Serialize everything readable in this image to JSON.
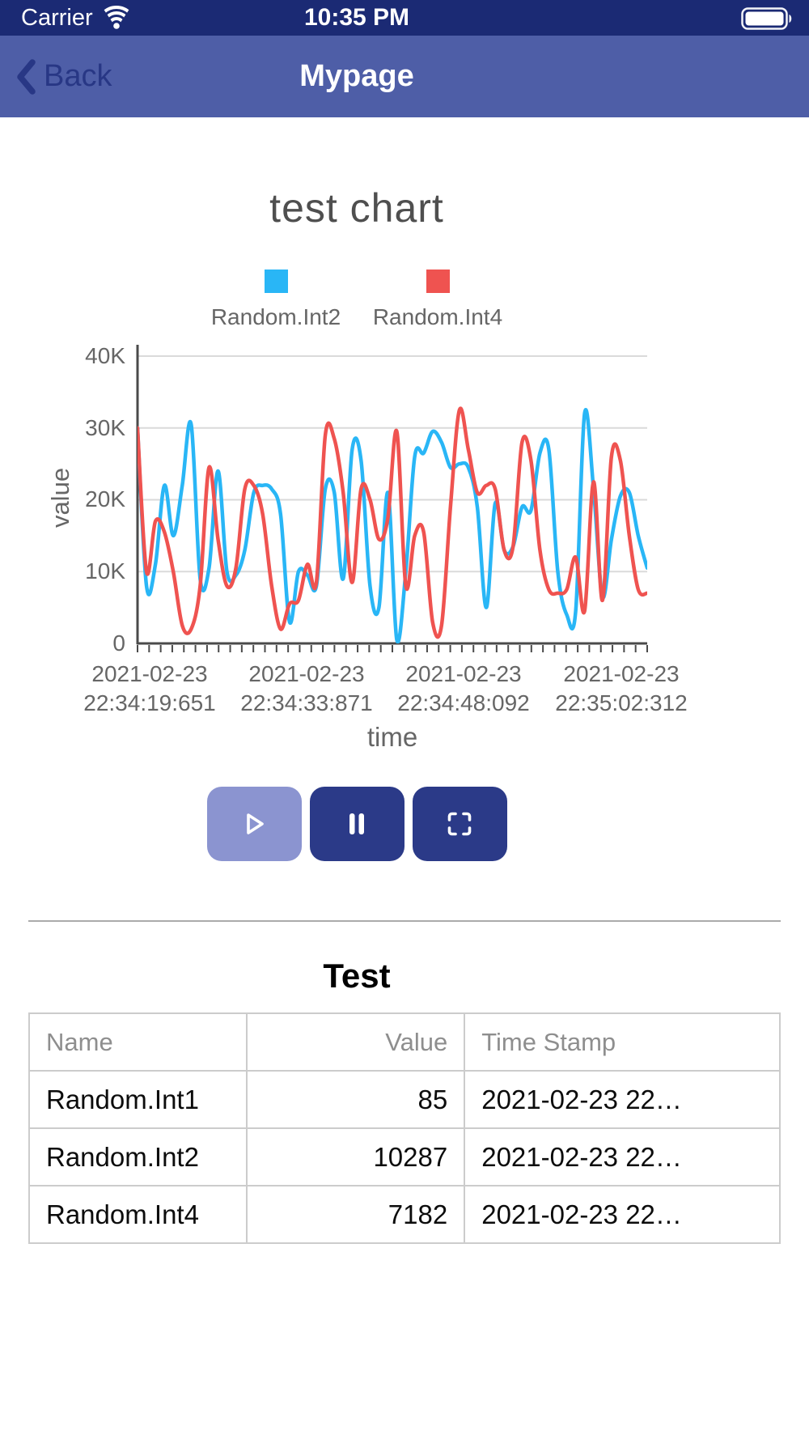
{
  "status_bar": {
    "carrier": "Carrier",
    "time": "10:35 PM"
  },
  "nav_bar": {
    "back_label": "Back",
    "title": "Mypage"
  },
  "chart": {
    "x_ticks": [
      {
        "date": "2021-02-23",
        "time": "22:34:19:651"
      },
      {
        "date": "2021-02-23",
        "time": "22:34:33:871"
      },
      {
        "date": "2021-02-23",
        "time": "22:34:48:092"
      },
      {
        "date": "2021-02-23",
        "time": "22:35:02:312"
      }
    ]
  },
  "chart_data": {
    "type": "line",
    "title": "test chart",
    "xlabel": "time",
    "ylabel": "value",
    "ylim": [
      0,
      40000
    ],
    "grid": true,
    "legend_position": "top",
    "y_tick_labels": [
      "0",
      "10K",
      "20K",
      "30K",
      "40K"
    ],
    "x_tick_labels": [
      "2021-02-23 22:34:19:651",
      "2021-02-23 22:34:33:871",
      "2021-02-23 22:34:48:092",
      "2021-02-23 22:35:02:312"
    ],
    "series": [
      {
        "name": "Random.Int2",
        "color": "#29b6f6",
        "values": [
          30000,
          8000,
          11000,
          22000,
          15000,
          22000,
          30500,
          9000,
          10500,
          24000,
          10000,
          9500,
          13000,
          21000,
          22000,
          21500,
          18000,
          3000,
          10000,
          9500,
          8000,
          21500,
          21000,
          9000,
          27000,
          25500,
          8000,
          5000,
          21000,
          500,
          10000,
          26000,
          26500,
          29500,
          28000,
          24500,
          25000,
          24500,
          19000,
          5000,
          19500,
          13000,
          13500,
          19000,
          18500,
          26500,
          27000,
          10000,
          4000,
          4500,
          32000,
          21500,
          6500,
          14500,
          20500,
          21000,
          15000,
          10500
        ]
      },
      {
        "name": "Random.Int4",
        "color": "#ef5350",
        "values": [
          30000,
          10000,
          17000,
          15500,
          10000,
          2500,
          2000,
          8000,
          24500,
          14500,
          8000,
          10500,
          21500,
          22000,
          18000,
          8000,
          2000,
          5500,
          6000,
          11000,
          8500,
          29000,
          28500,
          21000,
          8500,
          21500,
          20000,
          14500,
          17500,
          29500,
          8000,
          15000,
          15500,
          3000,
          2500,
          19000,
          32500,
          27000,
          21000,
          22000,
          21500,
          13000,
          13500,
          28000,
          25500,
          13000,
          7500,
          7000,
          7500,
          12000,
          4500,
          22500,
          6000,
          26000,
          25500,
          15000,
          7500,
          7000
        ]
      }
    ]
  },
  "icons": {
    "wifi_icon": "wifi-arcs",
    "battery_icon": "battery-full",
    "back_icon": "chevron-left",
    "play_icon": "triangle-outline",
    "pause_icon": "double-bars",
    "fullscreen_icon": "corner-brackets"
  },
  "colors": {
    "status_bar_bg": "#1b2a74",
    "nav_bar_bg": "#4e5ea7",
    "back_tint": "#283785",
    "button_active_bg": "#2b3a88",
    "button_disabled_bg": "#8b94d0",
    "series_blue": "#29b6f6",
    "series_red": "#ef5350"
  },
  "detail": {
    "title": "Test",
    "table": {
      "headers": {
        "name": "Name",
        "value": "Value",
        "timestamp": "Time Stamp"
      },
      "rows": [
        {
          "name": "Random.Int1",
          "value": "85",
          "timestamp": "2021-02-23 22…"
        },
        {
          "name": "Random.Int2",
          "value": "10287",
          "timestamp": "2021-02-23 22…"
        },
        {
          "name": "Random.Int4",
          "value": "7182",
          "timestamp": "2021-02-23 22…"
        }
      ]
    }
  }
}
